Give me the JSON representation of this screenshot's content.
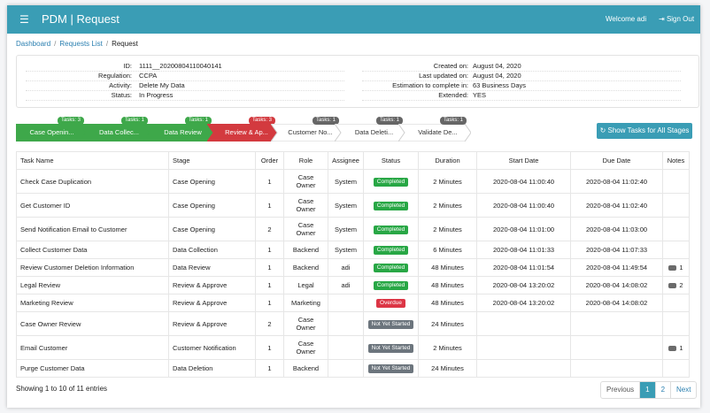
{
  "nav": {
    "menu_icon": "hamburger-icon",
    "title": "PDM | Request",
    "welcome": "Welcome adi",
    "signout": "Sign Out"
  },
  "breadcrumb": {
    "dashboard": "Dashboard",
    "requests": "Requests List",
    "current": "Request"
  },
  "info": {
    "left": [
      {
        "label": "ID:",
        "value": "1111__20200804110040141"
      },
      {
        "label": "Regulation:",
        "value": "CCPA"
      },
      {
        "label": "Activity:",
        "value": "Delete My Data"
      },
      {
        "label": "Status:",
        "value": "In Progress"
      }
    ],
    "right": [
      {
        "label": "Created on:",
        "value": "August 04, 2020"
      },
      {
        "label": "Last updated on:",
        "value": "August 04, 2020"
      },
      {
        "label": "Estimation to complete in:",
        "value": "63 Business Days"
      },
      {
        "label": "Extended:",
        "value": "YES"
      }
    ]
  },
  "stages": [
    {
      "label": "Case Openin...",
      "badge": "Tasks: 3",
      "status": "completed",
      "color": "#3ea84a"
    },
    {
      "label": "Data Collec...",
      "badge": "Tasks: 1",
      "status": "completed",
      "color": "#3ea84a"
    },
    {
      "label": "Data Review",
      "badge": "Tasks: 1",
      "status": "completed",
      "color": "#3ea84a"
    },
    {
      "label": "Review & Ap...",
      "badge": "Tasks: 3",
      "status": "overdue",
      "color": "#d33a3f"
    },
    {
      "label": "Customer No...",
      "badge": "Tasks: 1",
      "status": "pending",
      "color": "#ffffff"
    },
    {
      "label": "Data Deleti...",
      "badge": "Tasks: 1",
      "status": "pending",
      "color": "#ffffff"
    },
    {
      "label": "Validate De...",
      "badge": "Tasks: 1",
      "status": "pending",
      "color": "#ffffff"
    }
  ],
  "show_tasks_button": "Show Tasks for All Stages",
  "table": {
    "headers": [
      "Task Name",
      "Stage",
      "Order",
      "Role",
      "Assignee",
      "Status",
      "Duration",
      "Start Date",
      "Due Date",
      "Notes"
    ],
    "rows": [
      {
        "task": "Check Case Duplication",
        "stage": "Case Opening",
        "order": "1",
        "role": "Case Owner",
        "assignee": "System",
        "status": "Completed",
        "status_color": "#28a745",
        "duration": "2 Minutes",
        "start": "2020-08-04 11:00:40",
        "due": "2020-08-04 11:02:40",
        "notes": ""
      },
      {
        "task": "Get Customer ID",
        "stage": "Case Opening",
        "order": "1",
        "role": "Case Owner",
        "assignee": "System",
        "status": "Completed",
        "status_color": "#28a745",
        "duration": "2 Minutes",
        "start": "2020-08-04 11:00:40",
        "due": "2020-08-04 11:02:40",
        "notes": ""
      },
      {
        "task": "Send Notification Email to Customer",
        "stage": "Case Opening",
        "order": "2",
        "role": "Case Owner",
        "assignee": "System",
        "status": "Completed",
        "status_color": "#28a745",
        "duration": "2 Minutes",
        "start": "2020-08-04 11:01:00",
        "due": "2020-08-04 11:03:00",
        "notes": ""
      },
      {
        "task": "Collect Customer Data",
        "stage": "Data Collection",
        "order": "1",
        "role": "Backend",
        "assignee": "System",
        "status": "Completed",
        "status_color": "#28a745",
        "duration": "6 Minutes",
        "start": "2020-08-04 11:01:33",
        "due": "2020-08-04 11:07:33",
        "notes": ""
      },
      {
        "task": "Review Customer Deletion Information",
        "stage": "Data Review",
        "order": "1",
        "role": "Backend",
        "assignee": "adi",
        "status": "Completed",
        "status_color": "#28a745",
        "duration": "48 Minutes",
        "start": "2020-08-04 11:01:54",
        "due": "2020-08-04 11:49:54",
        "notes": "1"
      },
      {
        "task": "Legal Review",
        "stage": "Review & Approve",
        "order": "1",
        "role": "Legal",
        "assignee": "adi",
        "status": "Completed",
        "status_color": "#28a745",
        "duration": "48 Minutes",
        "start": "2020-08-04 13:20:02",
        "due": "2020-08-04 14:08:02",
        "notes": "2"
      },
      {
        "task": "Marketing Review",
        "stage": "Review & Approve",
        "order": "1",
        "role": "Marketing",
        "assignee": "",
        "status": "Overdue",
        "status_color": "#dc3545",
        "duration": "48 Minutes",
        "start": "2020-08-04 13:20:02",
        "due": "2020-08-04 14:08:02",
        "notes": ""
      },
      {
        "task": "Case Owner Review",
        "stage": "Review & Approve",
        "order": "2",
        "role": "Case Owner",
        "assignee": "",
        "status": "Not Yet Started",
        "status_color": "#6c757d",
        "duration": "24 Minutes",
        "start": "",
        "due": "",
        "notes": ""
      },
      {
        "task": "Email Customer",
        "stage": "Customer Notification",
        "order": "1",
        "role": "Case Owner",
        "assignee": "",
        "status": "Not Yet Started",
        "status_color": "#6c757d",
        "duration": "2 Minutes",
        "start": "",
        "due": "",
        "notes": "1"
      },
      {
        "task": "Purge Customer Data",
        "stage": "Data Deletion",
        "order": "1",
        "role": "Backend",
        "assignee": "",
        "status": "Not Yet Started",
        "status_color": "#6c757d",
        "duration": "24 Minutes",
        "start": "",
        "due": "",
        "notes": ""
      }
    ]
  },
  "footer": {
    "entries": "Showing 1 to 10 of 11 entries",
    "prev": "Previous",
    "page1": "1",
    "page2": "2",
    "next": "Next"
  }
}
